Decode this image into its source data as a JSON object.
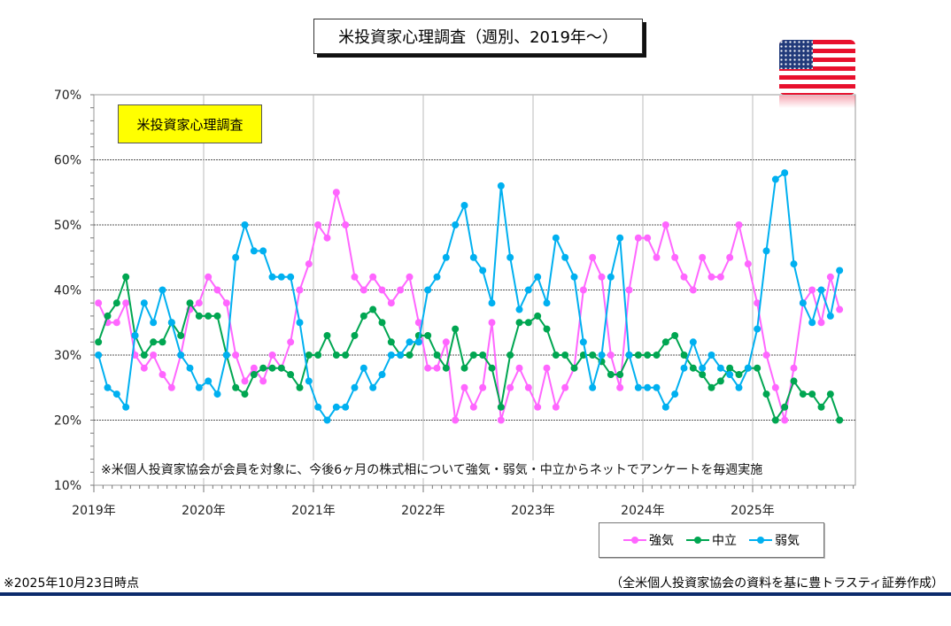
{
  "title": "米投資家心理調査（週別、2019年～）",
  "label_box": "米投資家心理調査",
  "note": "※米個人投資家協会が会員を対象に、今後6ヶ月の株式相について強気・弱気・中立からネットでアンケートを毎週実施",
  "footer_left": "※2025年10月23日時点",
  "footer_right": "（全米個人投資家協会の資料を基に豊トラスティ証券作成）",
  "flag_icon": "us-flag-icon",
  "colors": {
    "bull": "#ff66ff",
    "neutral": "#00a651",
    "bear": "#00b0f0",
    "navy": "#0b2a6b"
  },
  "chart_data": {
    "type": "line",
    "title": "米投資家心理調査（週別、2019年～）",
    "xlabel": "",
    "ylabel": "",
    "x_start": "2019-01",
    "frequency": "monthly (approx. from weekly)",
    "xlim": [
      2019,
      2026
    ],
    "ylim": [
      10,
      70
    ],
    "y_ticks": [
      "10%",
      "20%",
      "30%",
      "40%",
      "50%",
      "60%",
      "70%"
    ],
    "y_tick_values": [
      10,
      20,
      30,
      40,
      50,
      60,
      70
    ],
    "x_ticks": [
      "2019年",
      "2020年",
      "2021年",
      "2022年",
      "2023年",
      "2024年",
      "2025年"
    ],
    "x_tick_values": [
      2019,
      2020,
      2021,
      2022,
      2023,
      2024,
      2025
    ],
    "grid": true,
    "legend_placement": "bottom-right",
    "series": [
      {
        "name": "強気",
        "color": "#ff66ff",
        "values": [
          38,
          35,
          35,
          38,
          30,
          28,
          30,
          27,
          25,
          30,
          37,
          38,
          42,
          40,
          38,
          30,
          26,
          28,
          26,
          30,
          28,
          32,
          40,
          44,
          50,
          48,
          55,
          50,
          42,
          40,
          42,
          40,
          38,
          40,
          42,
          35,
          28,
          28,
          32,
          20,
          25,
          22,
          25,
          35,
          20,
          25,
          28,
          25,
          22,
          28,
          22,
          25,
          28,
          40,
          45,
          42,
          30,
          25,
          40,
          48,
          48,
          45,
          50,
          45,
          42,
          40,
          45,
          42,
          42,
          45,
          50,
          44,
          38,
          30,
          25,
          20,
          28,
          38,
          40,
          35,
          42,
          37
        ]
      },
      {
        "name": "中立",
        "color": "#00a651",
        "values": [
          32,
          36,
          38,
          42,
          33,
          30,
          32,
          32,
          35,
          33,
          38,
          36,
          36,
          36,
          30,
          25,
          24,
          27,
          28,
          28,
          28,
          27,
          25,
          30,
          30,
          33,
          30,
          30,
          33,
          36,
          37,
          35,
          32,
          30,
          30,
          33,
          33,
          30,
          28,
          34,
          28,
          30,
          30,
          28,
          22,
          30,
          35,
          35,
          36,
          34,
          30,
          30,
          28,
          30,
          30,
          29,
          27,
          27,
          30,
          30,
          30,
          30,
          32,
          33,
          30,
          28,
          27,
          25,
          26,
          28,
          27,
          28,
          28,
          24,
          20,
          22,
          26,
          24,
          24,
          22,
          24,
          20
        ]
      },
      {
        "name": "弱気",
        "color": "#00b0f0",
        "values": [
          30,
          25,
          24,
          22,
          33,
          38,
          35,
          40,
          35,
          30,
          28,
          25,
          26,
          24,
          30,
          45,
          50,
          46,
          46,
          42,
          42,
          42,
          35,
          26,
          22,
          20,
          22,
          22,
          25,
          28,
          25,
          27,
          30,
          30,
          32,
          32,
          40,
          42,
          45,
          50,
          53,
          45,
          43,
          38,
          56,
          45,
          37,
          40,
          42,
          38,
          48,
          45,
          42,
          32,
          25,
          30,
          42,
          48,
          30,
          25,
          25,
          25,
          22,
          24,
          28,
          32,
          28,
          30,
          28,
          27,
          25,
          28,
          34,
          46,
          57,
          58,
          44,
          38,
          35,
          40,
          36,
          43
        ]
      }
    ]
  }
}
